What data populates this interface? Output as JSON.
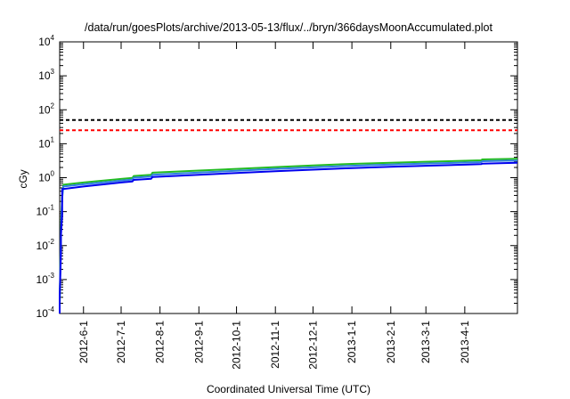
{
  "chart_data": {
    "type": "line",
    "title": "/data/run/goesPlots/archive/2013-05-13/flux/../bryn/366daysMoonAccumulated.plot",
    "xlabel": "Coordinated Universal Time (UTC)",
    "ylabel": "cGy",
    "y_scale": "log",
    "ylim": [
      0.0001,
      10000
    ],
    "xlim": [
      "2012-05-13",
      "2013-05-13"
    ],
    "y_tick_labels": [
      {
        "value": 0.0001,
        "base": "10",
        "exp": "-4"
      },
      {
        "value": 0.001,
        "base": "10",
        "exp": "-3"
      },
      {
        "value": 0.01,
        "base": "10",
        "exp": "-2"
      },
      {
        "value": 0.1,
        "base": "10",
        "exp": "-1"
      },
      {
        "value": 1,
        "base": "10",
        "exp": "0"
      },
      {
        "value": 10,
        "base": "10",
        "exp": "1"
      },
      {
        "value": 100,
        "base": "10",
        "exp": "2"
      },
      {
        "value": 1000,
        "base": "10",
        "exp": "3"
      },
      {
        "value": 10000,
        "base": "10",
        "exp": "4"
      }
    ],
    "x_tick_labels": [
      {
        "date": "2012-06-01",
        "label": "2012-6-1"
      },
      {
        "date": "2012-07-01",
        "label": "2012-7-1"
      },
      {
        "date": "2012-08-01",
        "label": "2012-8-1"
      },
      {
        "date": "2012-09-01",
        "label": "2012-9-1"
      },
      {
        "date": "2012-10-01",
        "label": "2012-10-1"
      },
      {
        "date": "2012-11-01",
        "label": "2012-11-1"
      },
      {
        "date": "2012-12-01",
        "label": "2012-12-1"
      },
      {
        "date": "2013-01-01",
        "label": "2013-1-1"
      },
      {
        "date": "2013-02-01",
        "label": "2013-2-1"
      },
      {
        "date": "2013-03-01",
        "label": "2013-3-1"
      },
      {
        "date": "2013-04-01",
        "label": "2013-4-1"
      }
    ],
    "grid": false,
    "legend": "none",
    "threshold_lines": [
      {
        "value": 50,
        "color": "#000000",
        "style": "dashed"
      },
      {
        "value": 25,
        "color": "#ff0000",
        "style": "dashed"
      }
    ],
    "series": [
      {
        "color": "#22bb22",
        "points": [
          [
            "2012-05-13",
            0.0002
          ],
          [
            "2012-05-14",
            0.03
          ],
          [
            "2012-05-15",
            0.3
          ],
          [
            "2012-05-16",
            0.62
          ],
          [
            "2012-06-01",
            0.72
          ],
          [
            "2012-07-01",
            0.92
          ],
          [
            "2012-07-10",
            0.98
          ],
          [
            "2012-07-11",
            1.12
          ],
          [
            "2012-07-25",
            1.22
          ],
          [
            "2012-07-26",
            1.4
          ],
          [
            "2012-09-01",
            1.62
          ],
          [
            "2012-10-01",
            1.82
          ],
          [
            "2012-11-01",
            2.05
          ],
          [
            "2012-12-01",
            2.3
          ],
          [
            "2013-01-01",
            2.55
          ],
          [
            "2013-02-01",
            2.75
          ],
          [
            "2013-03-01",
            2.95
          ],
          [
            "2013-04-01",
            3.15
          ],
          [
            "2013-04-14",
            3.25
          ],
          [
            "2013-04-15",
            3.45
          ],
          [
            "2013-05-13",
            3.6
          ]
        ]
      },
      {
        "color": "#2f7fe0",
        "points": [
          [
            "2012-05-13",
            0.00015
          ],
          [
            "2012-05-14",
            0.025
          ],
          [
            "2012-05-15",
            0.25
          ],
          [
            "2012-05-16",
            0.55
          ],
          [
            "2012-06-01",
            0.64
          ],
          [
            "2012-07-01",
            0.82
          ],
          [
            "2012-07-10",
            0.88
          ],
          [
            "2012-07-11",
            1.0
          ],
          [
            "2012-07-25",
            1.08
          ],
          [
            "2012-07-26",
            1.22
          ],
          [
            "2012-09-01",
            1.42
          ],
          [
            "2012-10-01",
            1.6
          ],
          [
            "2012-11-01",
            1.82
          ],
          [
            "2012-12-01",
            2.02
          ],
          [
            "2013-01-01",
            2.25
          ],
          [
            "2013-02-01",
            2.45
          ],
          [
            "2013-03-01",
            2.62
          ],
          [
            "2013-04-01",
            2.8
          ],
          [
            "2013-04-14",
            2.88
          ],
          [
            "2013-04-15",
            3.05
          ],
          [
            "2013-05-13",
            3.2
          ]
        ]
      },
      {
        "color": "#0000ee",
        "points": [
          [
            "2012-05-13",
            0.0001
          ],
          [
            "2012-05-13",
            0.0003
          ],
          [
            "2012-05-14",
            0.006
          ],
          [
            "2012-05-14",
            0.02
          ],
          [
            "2012-05-15",
            0.08
          ],
          [
            "2012-05-15",
            0.46
          ],
          [
            "2012-06-01",
            0.55
          ],
          [
            "2012-07-01",
            0.72
          ],
          [
            "2012-07-10",
            0.77
          ],
          [
            "2012-07-11",
            0.86
          ],
          [
            "2012-07-25",
            0.93
          ],
          [
            "2012-07-26",
            1.05
          ],
          [
            "2012-09-01",
            1.22
          ],
          [
            "2012-10-01",
            1.38
          ],
          [
            "2012-11-01",
            1.55
          ],
          [
            "2012-12-01",
            1.72
          ],
          [
            "2013-01-01",
            1.92
          ],
          [
            "2013-02-01",
            2.1
          ],
          [
            "2013-03-01",
            2.25
          ],
          [
            "2013-04-01",
            2.42
          ],
          [
            "2013-04-14",
            2.5
          ],
          [
            "2013-04-15",
            2.6
          ],
          [
            "2013-05-13",
            2.75
          ]
        ]
      }
    ]
  }
}
